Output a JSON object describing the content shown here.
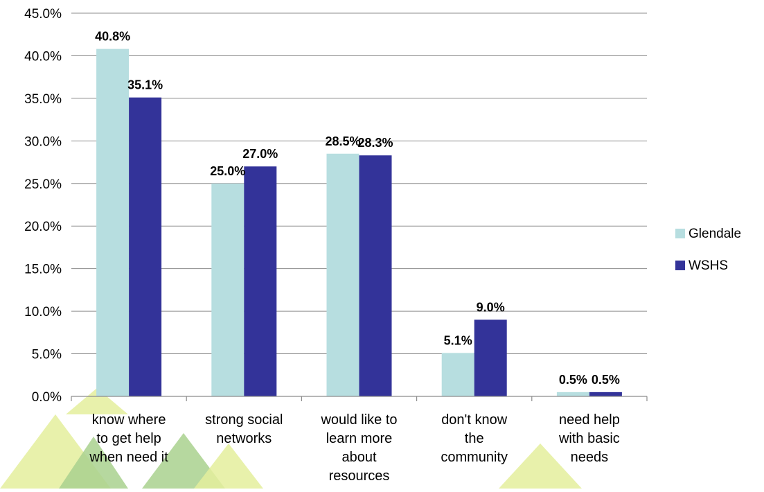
{
  "chart_data": {
    "type": "bar",
    "title": "",
    "xlabel": "",
    "ylabel": "",
    "ylim": [
      0,
      45
    ],
    "y_tick_step": 5,
    "y_tick_format": "percent_1dp",
    "grid": true,
    "legend_position": "right",
    "categories": [
      "know where to get help when need it",
      "strong social networks",
      "would like to learn more about resources",
      "don't know the community",
      "need help with basic needs"
    ],
    "category_lines": [
      [
        "know where",
        "to get help",
        "when need it"
      ],
      [
        "strong social",
        "networks"
      ],
      [
        "would like to",
        "learn more",
        "about",
        "resources"
      ],
      [
        "don't know",
        "the",
        "community"
      ],
      [
        "need help",
        "with basic",
        "needs"
      ]
    ],
    "series": [
      {
        "name": "Glendale",
        "values": [
          40.8,
          25.0,
          28.5,
          5.1,
          0.5
        ],
        "color": "#b7dee0",
        "labels": [
          "40.8%",
          "25.0%",
          "28.5%",
          "5.1%",
          "0.5%"
        ]
      },
      {
        "name": "WSHS",
        "values": [
          35.1,
          27.0,
          28.3,
          9.0,
          0.5
        ],
        "color": "#333399",
        "labels": [
          "35.1%",
          "27.0%",
          "28.3%",
          "9.0%",
          "0.5%"
        ]
      }
    ]
  },
  "colors": {
    "gridline": "#8c8c8c",
    "axis": "#8c8c8c",
    "decor_green_light": "#e4ef9c",
    "decor_green": "#a9d18e"
  }
}
